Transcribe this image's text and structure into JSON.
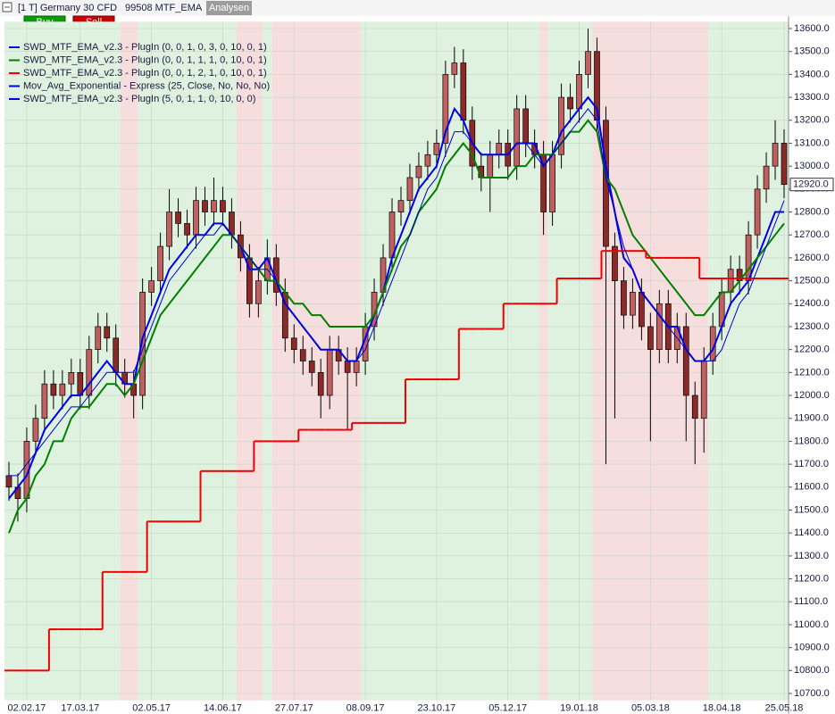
{
  "header": {
    "title": "[1 T] Germany 30 CFD",
    "strategy": "99508 MTF_EMA",
    "button": "Analysen",
    "buy": "Buy",
    "sell": "Sell"
  },
  "chart_data": {
    "type": "candlestick",
    "categories": [
      null,
      null,
      "02.02.17",
      null,
      null,
      null,
      null,
      null,
      "17.03.17",
      null,
      null,
      null,
      null,
      null,
      null,
      null,
      "02.05.17",
      null,
      null,
      null,
      null,
      null,
      null,
      null,
      "14.06.17",
      null,
      null,
      null,
      null,
      null,
      null,
      null,
      "27.07.17",
      null,
      null,
      null,
      null,
      null,
      null,
      null,
      "08.09.17",
      null,
      null,
      null,
      null,
      null,
      null,
      null,
      "23.10.17",
      null,
      null,
      null,
      null,
      null,
      null,
      null,
      "05.12.17",
      null,
      null,
      null,
      null,
      null,
      null,
      null,
      "19.01.18",
      null,
      null,
      null,
      null,
      null,
      null,
      null,
      "05.03.18",
      null,
      null,
      null,
      null,
      null,
      null,
      null,
      "18.04.18",
      null,
      null,
      null,
      null,
      null,
      null,
      "25.05.18"
    ],
    "open": [
      11650,
      11600,
      11550,
      11800,
      11900,
      12050,
      12000,
      12050,
      12100,
      12000,
      12200,
      12300,
      12250,
      12100,
      12050,
      12000,
      12450,
      12500,
      12650,
      12800,
      12750,
      12700,
      12850,
      12800,
      12850,
      12800,
      12700,
      12600,
      12400,
      12500,
      12600,
      12450,
      12250,
      12200,
      12150,
      12100,
      12000,
      12200,
      12150,
      12100,
      12150,
      12300,
      12450,
      12600,
      12800,
      12850,
      12950,
      13000,
      13050,
      13100,
      13400,
      13450,
      13200,
      13000,
      12950,
      13050,
      13100,
      13000,
      13250,
      13100,
      13050,
      12800,
      13050,
      13300,
      13250,
      13400,
      13500,
      13200,
      12650,
      12500,
      12350,
      12450,
      12300,
      12200,
      12400,
      12200,
      12300,
      12000,
      11900,
      12150,
      12300,
      12450,
      12550,
      12500,
      12700,
      12900,
      13000,
      13100
    ],
    "high": [
      11710,
      11660,
      11860,
      11960,
      12110,
      12110,
      12110,
      12160,
      12160,
      12260,
      12360,
      12360,
      12310,
      12160,
      12110,
      12510,
      12560,
      12710,
      12900,
      12860,
      12810,
      12910,
      12910,
      12950,
      12910,
      12860,
      12760,
      12660,
      12560,
      12680,
      12660,
      12510,
      12310,
      12260,
      12210,
      12160,
      12260,
      12260,
      12210,
      12210,
      12360,
      12510,
      12660,
      12860,
      12910,
      13010,
      13060,
      13110,
      13160,
      13460,
      13520,
      13510,
      13260,
      13060,
      13110,
      13160,
      13160,
      13310,
      13310,
      13160,
      13110,
      13110,
      13360,
      13360,
      13460,
      13600,
      13560,
      13260,
      12710,
      12560,
      12510,
      12510,
      12360,
      12460,
      12460,
      12360,
      12360,
      12060,
      12210,
      12360,
      12510,
      12610,
      12610,
      12760,
      12960,
      13060,
      13200,
      13160
    ],
    "low": [
      11540,
      11450,
      11490,
      11740,
      11840,
      11940,
      11940,
      11990,
      11940,
      11940,
      12140,
      12190,
      12040,
      11990,
      11900,
      11940,
      12390,
      12440,
      12590,
      12690,
      12640,
      12640,
      12740,
      12740,
      12740,
      12640,
      12540,
      12340,
      12340,
      12440,
      12390,
      12190,
      12140,
      12090,
      12040,
      11900,
      11940,
      12090,
      11850,
      12040,
      12090,
      12240,
      12390,
      12540,
      12740,
      12790,
      12890,
      12940,
      12990,
      13040,
      13340,
      13140,
      12940,
      12890,
      12800,
      12990,
      12940,
      12940,
      13040,
      12990,
      12700,
      12740,
      12990,
      13190,
      13190,
      13340,
      13140,
      11700,
      11900,
      12290,
      12290,
      12240,
      11800,
      12140,
      12140,
      12140,
      11800,
      11700,
      11750,
      12090,
      12240,
      12390,
      12440,
      12440,
      12640,
      12840,
      12940,
      12860
    ],
    "close": [
      11600,
      11550,
      11800,
      11900,
      12050,
      12000,
      12050,
      12100,
      12000,
      12200,
      12300,
      12250,
      12100,
      12050,
      12000,
      12450,
      12500,
      12650,
      12800,
      12750,
      12700,
      12850,
      12800,
      12850,
      12800,
      12700,
      12600,
      12400,
      12500,
      12600,
      12450,
      12250,
      12200,
      12150,
      12100,
      12000,
      12200,
      12150,
      12100,
      12150,
      12300,
      12450,
      12600,
      12800,
      12850,
      12950,
      13000,
      13050,
      13100,
      13400,
      13450,
      13200,
      13000,
      12950,
      13050,
      13100,
      13000,
      13250,
      13100,
      13050,
      12800,
      13050,
      13300,
      13250,
      13400,
      13500,
      13200,
      12650,
      12500,
      12350,
      12450,
      12300,
      12200,
      12400,
      12200,
      12300,
      12000,
      11900,
      12150,
      12300,
      12450,
      12550,
      12500,
      12700,
      12900,
      13000,
      13100,
      12920
    ],
    "up_color": "#c06060",
    "down_color": "#8c2a2a",
    "outline_color": "#000000",
    "series": [
      {
        "name": "SWD_MTF_EMA_v2.3 - PlugIn  (0, 0, 1, 0, 3, 0, 10, 0, 1)",
        "color": "#0000ee",
        "width": 2,
        "style": "line",
        "values": [
          11550,
          11600,
          11650,
          11750,
          11850,
          11900,
          11950,
          12000,
          12000,
          12050,
          12100,
          12150,
          12100,
          12050,
          12050,
          12250,
          12350,
          12450,
          12550,
          12600,
          12650,
          12700,
          12700,
          12750,
          12750,
          12700,
          12650,
          12550,
          12550,
          12600,
          12500,
          12400,
          12350,
          12300,
          12250,
          12200,
          12200,
          12200,
          12150,
          12150,
          12250,
          12350,
          12450,
          12600,
          12700,
          12800,
          12900,
          12950,
          13000,
          13150,
          13250,
          13200,
          13100,
          13050,
          13050,
          13050,
          13050,
          13100,
          13100,
          13100,
          13000,
          13050,
          13150,
          13200,
          13250,
          13300,
          13250,
          13000,
          12800,
          12600,
          12550,
          12450,
          12400,
          12350,
          12300,
          12300,
          12200,
          12150,
          12150,
          12200,
          12300,
          12400,
          12450,
          12500,
          12600,
          12700,
          12800,
          12800
        ]
      },
      {
        "name": "SWD_MTF_EMA_v2.3 - PlugIn  (0, 0, 1, 1, 1, 0, 10, 0, 1)",
        "color": "#008000",
        "width": 2,
        "style": "line",
        "values": [
          11400,
          11500,
          11550,
          11650,
          11700,
          11800,
          11800,
          11900,
          11950,
          11950,
          12000,
          12050,
          12050,
          12000,
          12050,
          12150,
          12250,
          12350,
          12400,
          12450,
          12500,
          12550,
          12600,
          12650,
          12700,
          12700,
          12650,
          12600,
          12550,
          12500,
          12500,
          12450,
          12400,
          12400,
          12350,
          12350,
          12300,
          12300,
          12300,
          12300,
          12300,
          12350,
          12450,
          12550,
          12650,
          12700,
          12800,
          12850,
          12900,
          13000,
          13050,
          13100,
          13050,
          12950,
          12950,
          12950,
          12950,
          13000,
          13000,
          13050,
          13050,
          13050,
          13100,
          13150,
          13150,
          13200,
          13150,
          12950,
          12900,
          12800,
          12700,
          12650,
          12600,
          12550,
          12500,
          12450,
          12400,
          12350,
          12350,
          12400,
          12450,
          12450,
          12500,
          12550,
          12600,
          12650,
          12700,
          12750
        ]
      },
      {
        "name": "SWD_MTF_EMA_v2.3 - PlugIn  (0, 0, 1, 2, 1, 0, 10, 0, 1)",
        "color": "#ee0000",
        "width": 2,
        "style": "step",
        "values": [
          10800,
          10800,
          10800,
          10800,
          10800,
          10980,
          10980,
          10980,
          10980,
          10980,
          10980,
          11230,
          11230,
          11230,
          11230,
          11230,
          11450,
          11450,
          11450,
          11450,
          11450,
          11450,
          11670,
          11670,
          11670,
          11670,
          11670,
          11670,
          11800,
          11800,
          11800,
          11800,
          11800,
          11850,
          11850,
          11850,
          11850,
          11850,
          11850,
          11880,
          11880,
          11880,
          11880,
          11880,
          11880,
          12070,
          12070,
          12070,
          12070,
          12070,
          12070,
          12290,
          12290,
          12290,
          12290,
          12290,
          12400,
          12400,
          12400,
          12400,
          12400,
          12400,
          12510,
          12510,
          12510,
          12510,
          12510,
          12630,
          12630,
          12630,
          12630,
          12630,
          12600,
          12600,
          12600,
          12600,
          12600,
          12600,
          12510,
          12510,
          12510,
          12510,
          12510,
          12510,
          12510,
          12510,
          12510,
          12510
        ]
      },
      {
        "name": "Mov_Avg_Exponential - Express  (25, Close, No, No, No)",
        "color": "#0000cc",
        "width": 1,
        "style": "line",
        "values": [
          11650,
          11650,
          11700,
          11750,
          11800,
          11850,
          11900,
          11950,
          11950,
          12000,
          12050,
          12100,
          12100,
          12100,
          12100,
          12200,
          12300,
          12400,
          12500,
          12550,
          12600,
          12650,
          12700,
          12700,
          12750,
          12700,
          12650,
          12600,
          12550,
          12550,
          12500,
          12400,
          12350,
          12300,
          12250,
          12200,
          12200,
          12200,
          12150,
          12150,
          12200,
          12300,
          12400,
          12500,
          12600,
          12700,
          12800,
          12900,
          12950,
          13050,
          13150,
          13150,
          13100,
          13050,
          13050,
          13050,
          13050,
          13100,
          13100,
          13050,
          13000,
          13050,
          13100,
          13150,
          13200,
          13250,
          13200,
          12950,
          12800,
          12650,
          12550,
          12450,
          12400,
          12350,
          12300,
          12250,
          12200,
          12150,
          12150,
          12150,
          12200,
          12300,
          12400,
          12450,
          12550,
          12650,
          12750,
          12850
        ]
      },
      {
        "name": "SWD_MTF_EMA_v2.3 - PlugIn  (5, 0, 1, 1, 0, 10, 0, 0)",
        "color": "#0000ee",
        "style": "zones",
        "zones": [
          {
            "from": 0,
            "to": 12,
            "color": "#dff2df"
          },
          {
            "from": 13,
            "to": 14,
            "color": "#f7dede"
          },
          {
            "from": 15,
            "to": 25,
            "color": "#dff2df"
          },
          {
            "from": 26,
            "to": 28,
            "color": "#f7dede"
          },
          {
            "from": 29,
            "to": 29,
            "color": "#dff2df"
          },
          {
            "from": 30,
            "to": 39,
            "color": "#f7dede"
          },
          {
            "from": 40,
            "to": 59,
            "color": "#dff2df"
          },
          {
            "from": 60,
            "to": 60,
            "color": "#f7dede"
          },
          {
            "from": 61,
            "to": 65,
            "color": "#dff2df"
          },
          {
            "from": 66,
            "to": 78,
            "color": "#f7dede"
          },
          {
            "from": 79,
            "to": 87,
            "color": "#dff2df"
          }
        ]
      }
    ],
    "ylim": [
      10670,
      13630
    ],
    "yticks": [
      {
        "value": 10700,
        "label": "10700.0"
      },
      {
        "value": 10800,
        "label": "10800.0"
      },
      {
        "value": 10900,
        "label": "10900.0"
      },
      {
        "value": 11000,
        "label": "11000.0"
      },
      {
        "value": 11100,
        "label": "11100.0"
      },
      {
        "value": 11200,
        "label": "11200.0"
      },
      {
        "value": 11300,
        "label": "11300.0"
      },
      {
        "value": 11400,
        "label": "11400.0"
      },
      {
        "value": 11500,
        "label": "11500.0"
      },
      {
        "value": 11600,
        "label": "11600.0"
      },
      {
        "value": 11700,
        "label": "11700.0"
      },
      {
        "value": 11800,
        "label": "11800.0"
      },
      {
        "value": 11900,
        "label": "11900.0"
      },
      {
        "value": 12000,
        "label": "12000.0"
      },
      {
        "value": 12100,
        "label": "12100.0"
      },
      {
        "value": 12200,
        "label": "12200.0"
      },
      {
        "value": 12300,
        "label": "12300.0"
      },
      {
        "value": 12400,
        "label": "12400.0"
      },
      {
        "value": 12500,
        "label": "12500.0"
      },
      {
        "value": 12600,
        "label": "12600.0"
      },
      {
        "value": 12700,
        "label": "12700.0"
      },
      {
        "value": 12800,
        "label": "12800.0"
      },
      {
        "value": 12900,
        "label": "12900.0"
      },
      {
        "value": 13000,
        "label": "13000.0"
      },
      {
        "value": 13100,
        "label": "13100.0"
      },
      {
        "value": 13200,
        "label": "13200.0"
      },
      {
        "value": 13300,
        "label": "13300.0"
      },
      {
        "value": 13400,
        "label": "13400.0"
      },
      {
        "value": 13500,
        "label": "13500.0"
      },
      {
        "value": 13600,
        "label": "13600.0"
      }
    ],
    "last_price": {
      "value": 12920,
      "label": "12920.0"
    },
    "grid": true
  }
}
